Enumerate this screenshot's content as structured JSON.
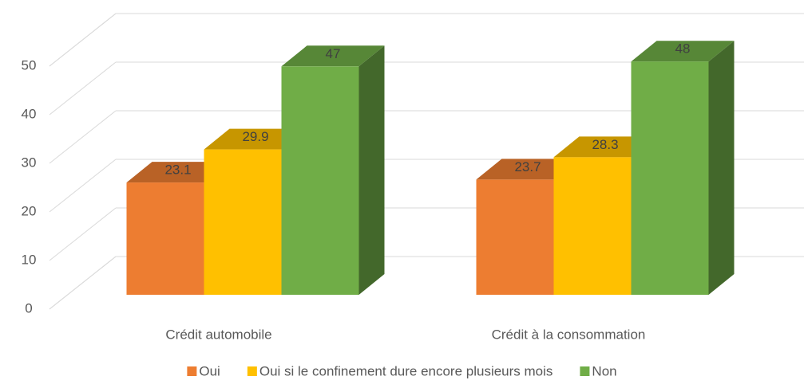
{
  "chart_data": {
    "type": "bar3d",
    "categories": [
      "Crédit automobile",
      "Crédit à la consommation"
    ],
    "series": [
      {
        "name": "Oui",
        "color": "#ed7d31",
        "values": [
          23.1,
          23.7
        ]
      },
      {
        "name": "Oui si le confinement dure encore plusieurs mois",
        "color": "#ffc000",
        "values": [
          29.9,
          28.3
        ]
      },
      {
        "name": "Non",
        "color": "#70ad47",
        "values": [
          47,
          48
        ]
      }
    ],
    "ylim": [
      0,
      50
    ],
    "yticks": [
      0,
      10,
      20,
      30,
      40,
      50
    ],
    "grid": true,
    "legend": "bottom"
  }
}
